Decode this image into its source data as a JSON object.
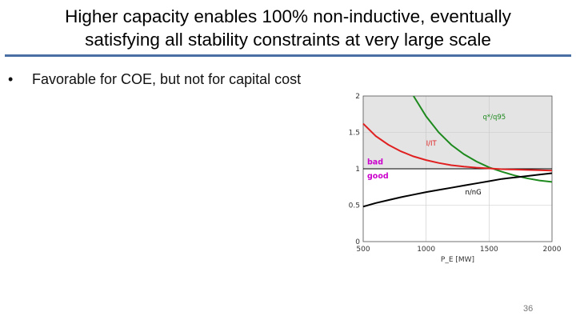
{
  "slide": {
    "title_line1": "Higher capacity enables 100% non-inductive, eventually",
    "title_line2": "satisfying all stability constraints at very large scale",
    "bullet_marker": "•",
    "bullet_text": "Favorable for COE, but not for capital cost",
    "page_number": "36"
  },
  "colors": {
    "title_rule": "#4a6fa5",
    "bad_region": "#e4e4e4",
    "q_curve": "#1e8a1e",
    "i_curve": "#e02020",
    "n_curve": "#000000",
    "label_magenta": "#cc00cc"
  },
  "chart_data": {
    "type": "line",
    "xlabel": "P_E [MW]",
    "ylabel": "",
    "xlim": [
      500,
      2000
    ],
    "ylim": [
      0,
      2
    ],
    "xticks": [
      "500",
      "1000",
      "1500",
      "2000"
    ],
    "yticks": [
      "0",
      "0.5",
      "1",
      "1.5",
      "2"
    ],
    "grid": true,
    "reference_line": 1,
    "shaded_region": {
      "from": 1,
      "to": 2
    },
    "region_labels": {
      "above": "bad",
      "below": "good"
    },
    "series": [
      {
        "name": "q*/q95",
        "color": "#1e8a1e",
        "x": [
          900,
          1000,
          1100,
          1200,
          1300,
          1400,
          1500,
          1600,
          1700,
          1800,
          1900,
          2000
        ],
        "y": [
          2.0,
          1.72,
          1.5,
          1.33,
          1.2,
          1.1,
          1.02,
          0.96,
          0.91,
          0.87,
          0.84,
          0.82
        ]
      },
      {
        "name": "I/IT",
        "color": "#e02020",
        "x": [
          500,
          600,
          700,
          800,
          900,
          1000,
          1100,
          1200,
          1300,
          1400,
          1500,
          1600,
          1700,
          1800,
          1900,
          2000
        ],
        "y": [
          1.62,
          1.45,
          1.33,
          1.24,
          1.17,
          1.12,
          1.08,
          1.05,
          1.03,
          1.015,
          1.005,
          0.995,
          0.99,
          0.985,
          0.98,
          0.975
        ]
      },
      {
        "name": "n/nG",
        "color": "#000000",
        "x": [
          500,
          600,
          700,
          800,
          900,
          1000,
          1100,
          1200,
          1300,
          1400,
          1500,
          1600,
          1700,
          1800,
          1900,
          2000
        ],
        "y": [
          0.48,
          0.53,
          0.57,
          0.61,
          0.645,
          0.68,
          0.71,
          0.74,
          0.77,
          0.8,
          0.83,
          0.86,
          0.88,
          0.9,
          0.92,
          0.94
        ]
      }
    ]
  }
}
